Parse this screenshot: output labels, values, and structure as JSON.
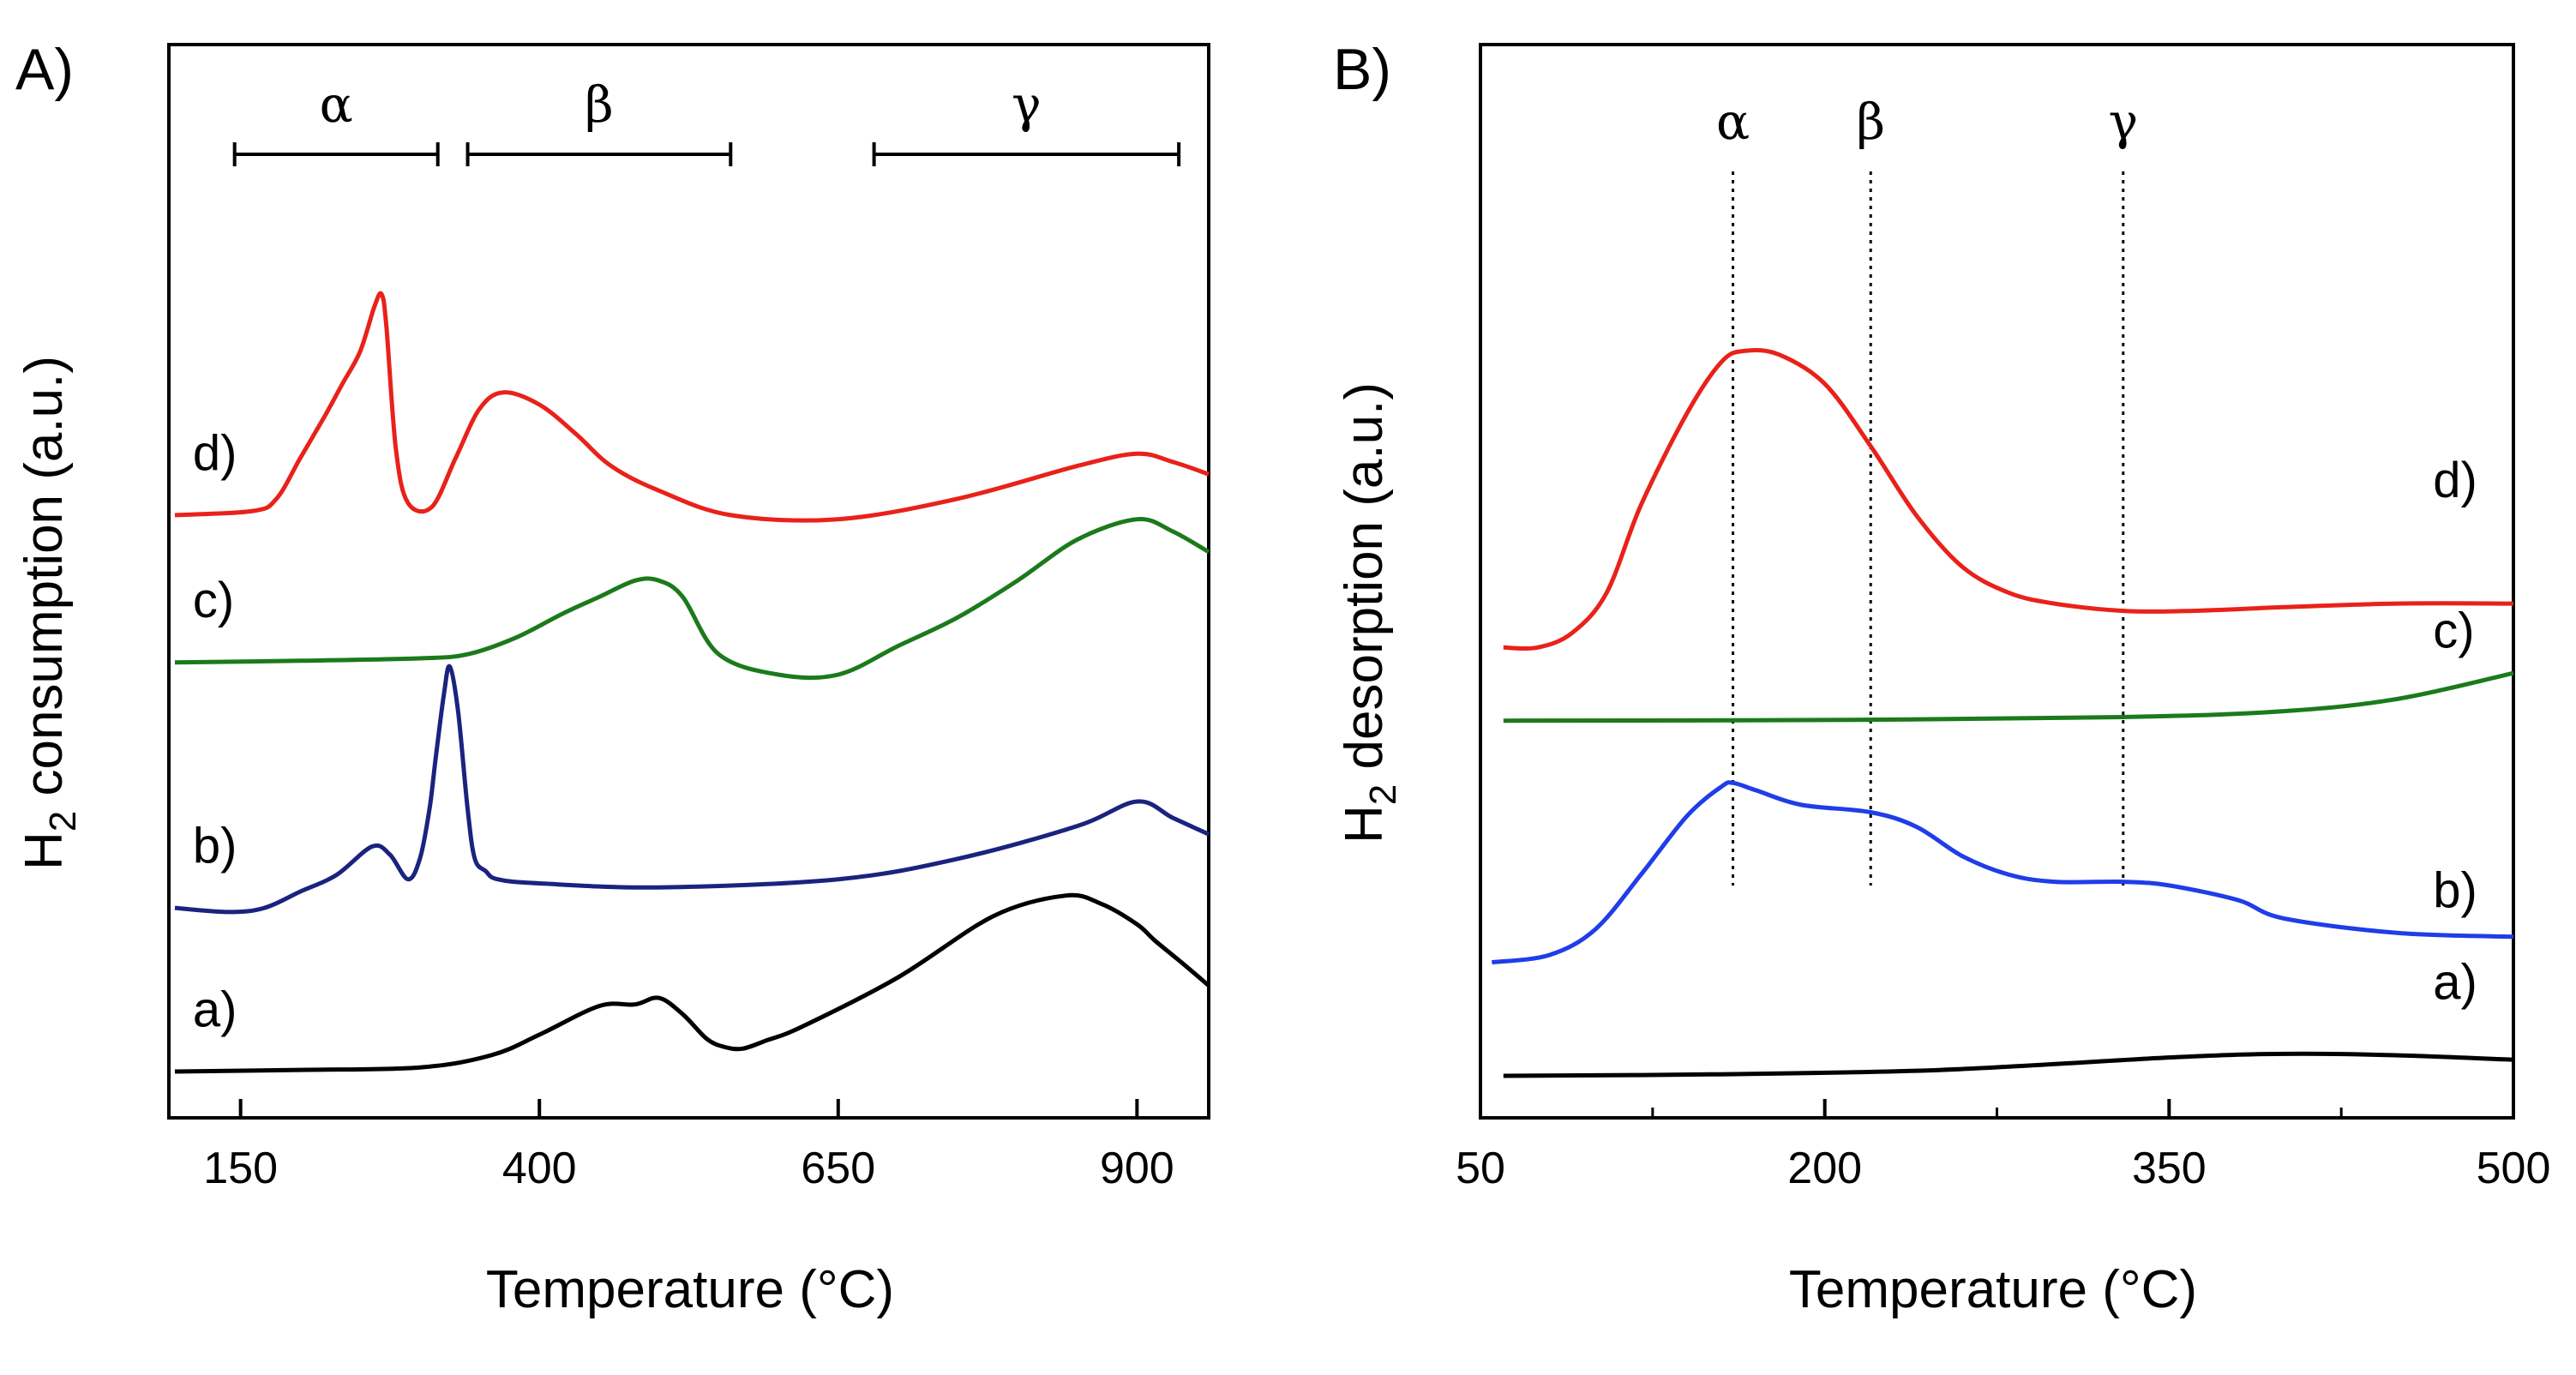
{
  "chart_data": [
    {
      "type": "line",
      "panel_label": "A)",
      "xlabel": "Temperature (°C)",
      "ylabel_main": "H",
      "ylabel_sub": "2",
      "ylabel_rest": " consumption (a.u.)",
      "xlim": [
        90,
        960
      ],
      "ylim": [
        0,
        11
      ],
      "xticks": [
        150,
        400,
        650,
        900
      ],
      "xtick_labels": [
        "150",
        "400",
        "650",
        "900"
      ],
      "yticks": [],
      "grid": false,
      "regions": [
        {
          "label": "α",
          "x_start": 145,
          "x_end": 315
        },
        {
          "label": "β",
          "x_start": 340,
          "x_end": 560
        },
        {
          "label": "γ",
          "x_start": 680,
          "x_end": 935
        }
      ],
      "series": [
        {
          "name": "a)",
          "color": "#000000",
          "label_at": [
            110,
            0.55
          ],
          "x": [
            95,
            200,
            300,
            360,
            400,
            450,
            480,
            500,
            520,
            540,
            555,
            570,
            590,
            620,
            700,
            780,
            840,
            870,
            900,
            915,
            940,
            960
          ],
          "y": [
            0.0,
            0.02,
            0.05,
            0.2,
            0.45,
            0.8,
            0.82,
            0.9,
            0.7,
            0.4,
            0.3,
            0.28,
            0.38,
            0.55,
            1.15,
            1.9,
            2.15,
            2.05,
            1.8,
            1.6,
            1.3,
            1.05
          ]
        },
        {
          "name": "b)",
          "color": "#1a237e",
          "label_at": [
            110,
            2.55
          ],
          "x": [
            95,
            140,
            170,
            200,
            230,
            260,
            275,
            290,
            300,
            308,
            313,
            320,
            325,
            332,
            340,
            346,
            355,
            365,
            400,
            500,
            650,
            750,
            850,
            900,
            930,
            960
          ],
          "y": [
            2.0,
            1.95,
            2.0,
            2.2,
            2.4,
            2.75,
            2.65,
            2.35,
            2.6,
            3.2,
            3.8,
            4.6,
            4.95,
            4.4,
            3.2,
            2.6,
            2.45,
            2.35,
            2.3,
            2.25,
            2.35,
            2.6,
            3.0,
            3.3,
            3.1,
            2.9
          ]
        },
        {
          "name": "c)",
          "color": "#1b7a1b",
          "label_at": [
            110,
            5.55
          ],
          "x": [
            95,
            200,
            300,
            340,
            380,
            420,
            450,
            480,
            500,
            520,
            550,
            600,
            650,
            700,
            750,
            800,
            850,
            900,
            930,
            960
          ],
          "y": [
            5.0,
            5.02,
            5.05,
            5.1,
            5.3,
            5.6,
            5.8,
            6.0,
            6.0,
            5.8,
            5.1,
            4.85,
            4.85,
            5.2,
            5.55,
            6.0,
            6.5,
            6.75,
            6.6,
            6.35
          ]
        },
        {
          "name": "d)",
          "color": "#e8221a",
          "label_at": [
            110,
            7.35
          ],
          "x": [
            95,
            160,
            180,
            200,
            220,
            235,
            250,
            262,
            268,
            272,
            280,
            290,
            310,
            330,
            350,
            370,
            400,
            430,
            460,
            500,
            560,
            650,
            750,
            850,
            900,
            930,
            960
          ],
          "y": [
            6.8,
            6.85,
            7.0,
            7.5,
            8.0,
            8.4,
            8.8,
            9.35,
            9.5,
            9.1,
            7.6,
            6.95,
            6.9,
            7.5,
            8.1,
            8.3,
            8.15,
            7.8,
            7.4,
            7.1,
            6.8,
            6.75,
            7.0,
            7.4,
            7.55,
            7.45,
            7.3
          ]
        }
      ]
    },
    {
      "type": "line",
      "panel_label": "B)",
      "xlabel": "Temperature (°C)",
      "ylabel_main": "H",
      "ylabel_sub": "2",
      "ylabel_rest": " desorption (a.u.)",
      "xlim": [
        50,
        500
      ],
      "ylim": [
        0,
        12
      ],
      "xticks": [
        50,
        200,
        350,
        500
      ],
      "xtick_labels": [
        "50",
        "200",
        "350",
        "500"
      ],
      "minor_xticks": [
        125,
        275,
        425
      ],
      "yticks": [],
      "grid": false,
      "reference_lines": [
        {
          "label": "α",
          "x": 160
        },
        {
          "label": "β",
          "x": 220
        },
        {
          "label": "γ",
          "x": 330
        }
      ],
      "series": [
        {
          "name": "a)",
          "color": "#000000",
          "label_at": [
            465,
            1.05
          ],
          "x": [
            60,
            150,
            250,
            350,
            400,
            450,
            500
          ],
          "y": [
            0.0,
            0.02,
            0.08,
            0.25,
            0.3,
            0.28,
            0.22
          ]
        },
        {
          "name": "b)",
          "color": "#1f3de8",
          "label_at": [
            465,
            2.3
          ],
          "x": [
            55,
            80,
            100,
            120,
            140,
            155,
            160,
            170,
            190,
            220,
            240,
            260,
            280,
            300,
            330,
            350,
            380,
            400,
            450,
            500
          ],
          "y": [
            1.55,
            1.65,
            2.0,
            2.75,
            3.55,
            3.95,
            4.0,
            3.9,
            3.7,
            3.6,
            3.4,
            3.0,
            2.75,
            2.65,
            2.65,
            2.6,
            2.4,
            2.15,
            1.95,
            1.9
          ]
        },
        {
          "name": "c)",
          "color": "#1b7a1b",
          "label_at": [
            465,
            5.85
          ],
          "x": [
            60,
            200,
            330,
            400,
            450,
            500
          ],
          "y": [
            4.85,
            4.86,
            4.9,
            4.98,
            5.15,
            5.5
          ]
        },
        {
          "name": "d)",
          "color": "#e8221a",
          "label_at": [
            465,
            7.9
          ],
          "x": [
            60,
            75,
            90,
            105,
            120,
            140,
            155,
            165,
            180,
            200,
            220,
            240,
            260,
            280,
            300,
            330,
            360,
            400,
            450,
            500
          ],
          "y": [
            5.85,
            5.85,
            6.05,
            6.6,
            7.8,
            9.05,
            9.75,
            9.9,
            9.85,
            9.45,
            8.6,
            7.65,
            6.95,
            6.6,
            6.45,
            6.35,
            6.35,
            6.4,
            6.45,
            6.45
          ]
        }
      ]
    }
  ]
}
